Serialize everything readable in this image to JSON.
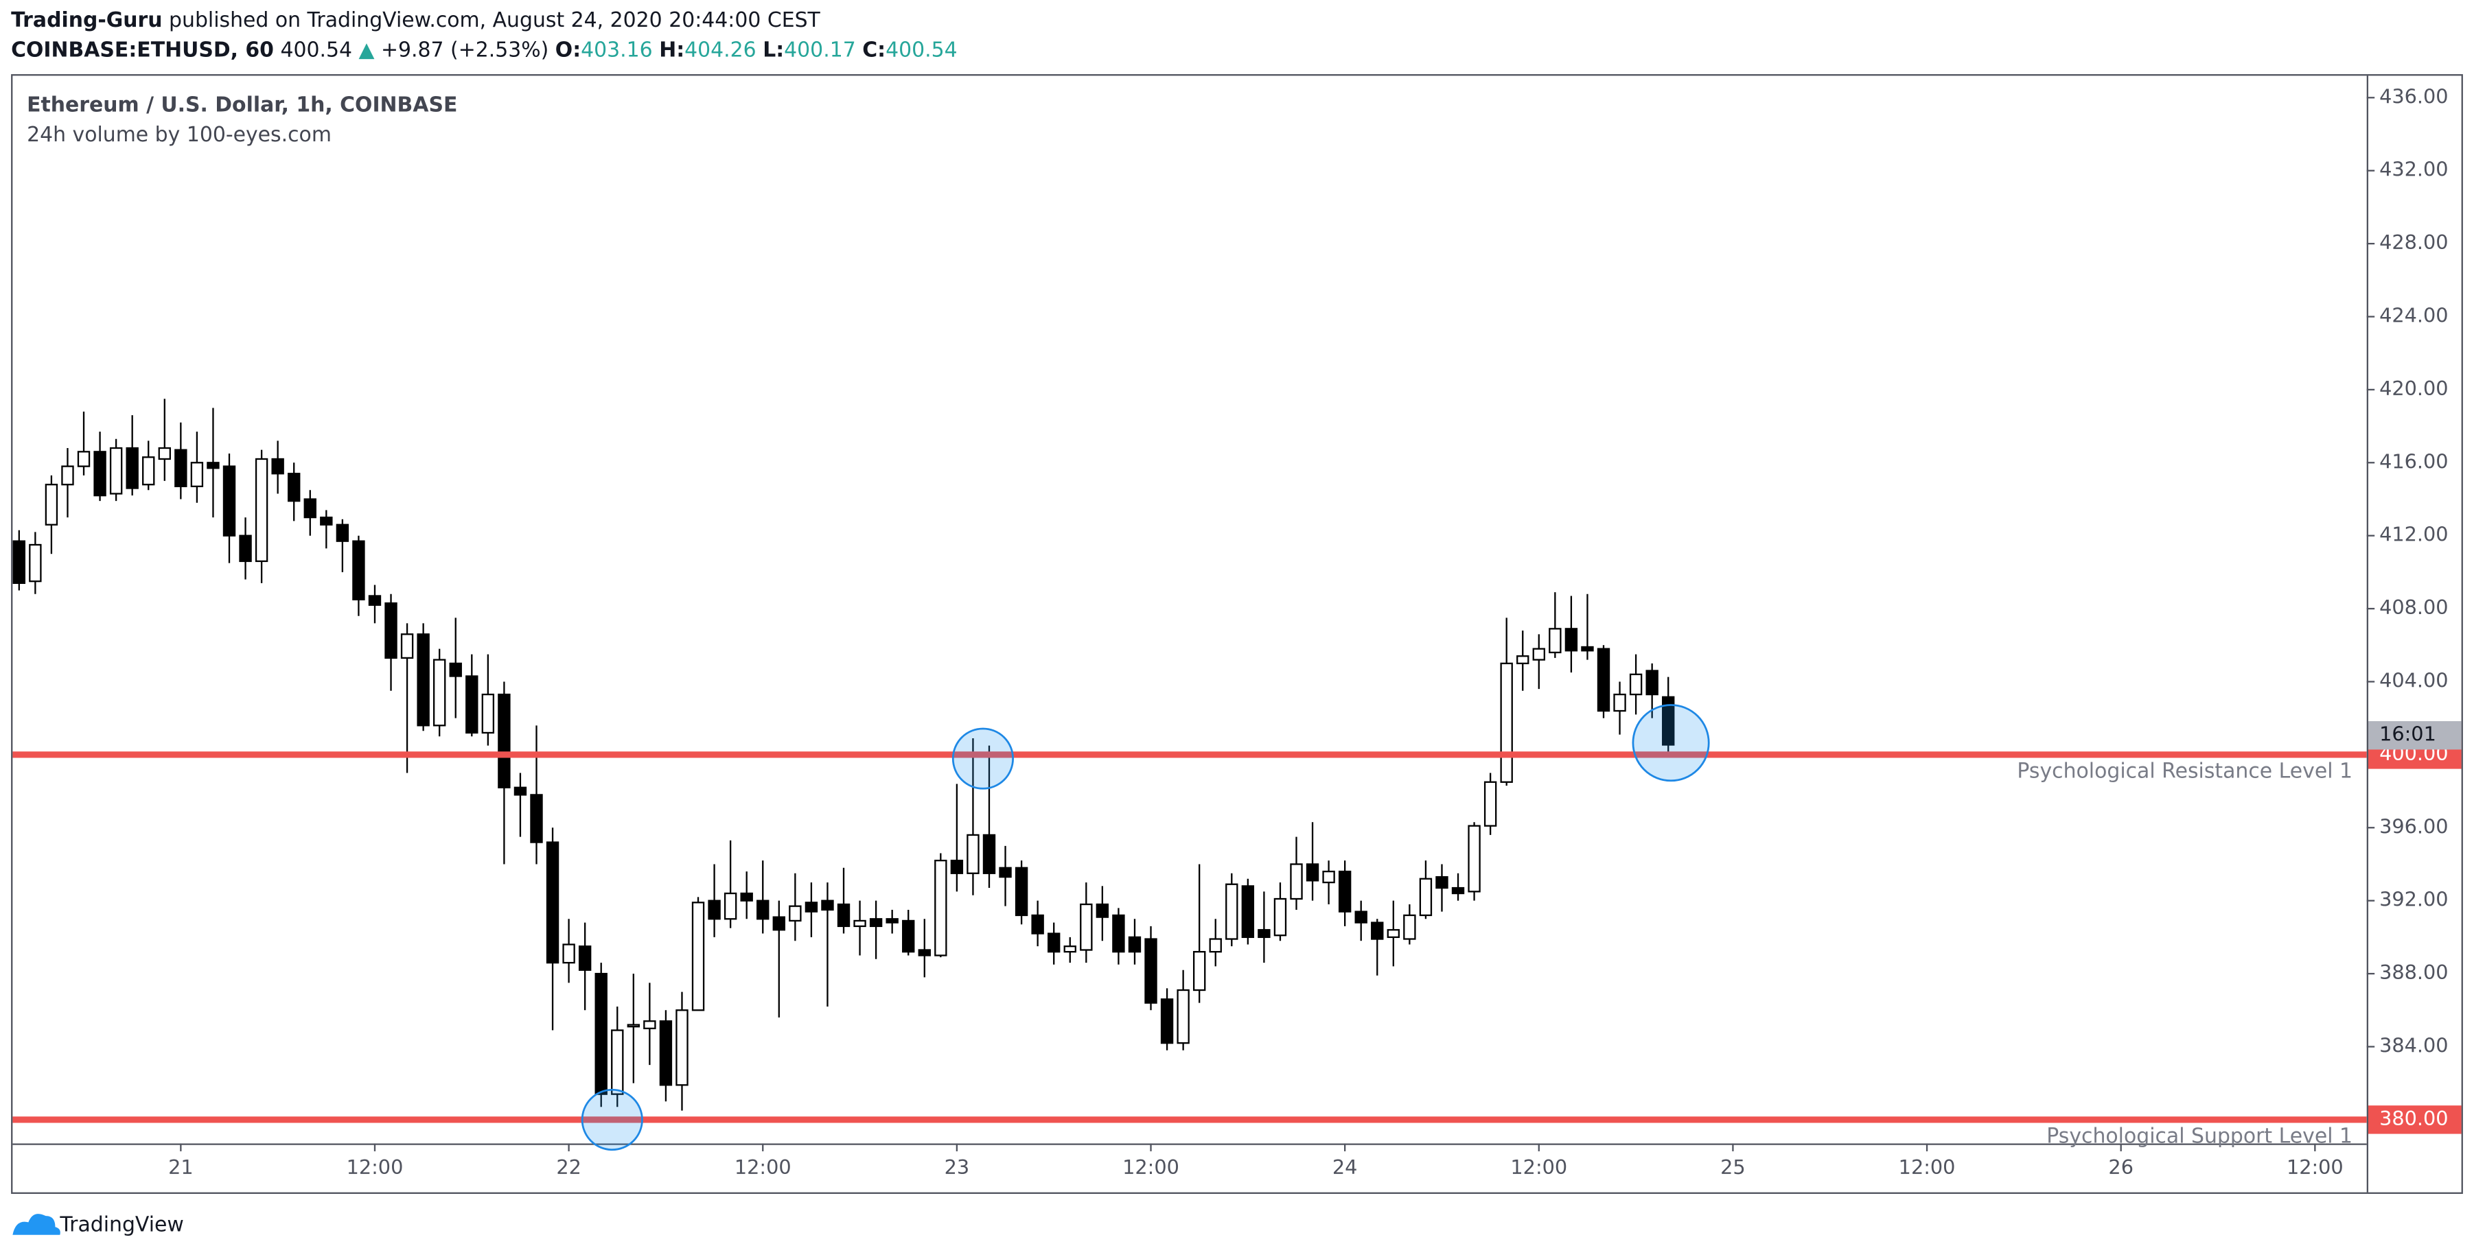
{
  "header": {
    "publisher": "Trading-Guru",
    "published_text": "published on TradingView.com, August 24, 2020 20:44:00 CEST",
    "symbol": "COINBASE:ETHUSD, 60",
    "last": "400.54",
    "arrow": "▲",
    "change": "+9.87 (+2.53%)",
    "ohlc": [
      {
        "label": "O:",
        "value": "403.16"
      },
      {
        "label": "H:",
        "value": "404.26"
      },
      {
        "label": "L:",
        "value": "400.17"
      },
      {
        "label": "C:",
        "value": "400.54"
      }
    ]
  },
  "chart_data": {
    "type": "candlestick",
    "title": "Ethereum / U.S. Dollar, 1h, COINBASE",
    "subtitle": "24h volume by 100-eyes.com",
    "up_color": "#ffffff",
    "down_color": "#000000",
    "grid": false,
    "open": [
      411.7,
      409.5,
      412.6,
      414.8,
      415.8,
      416.6,
      414.3,
      416.8,
      414.8,
      416.2,
      416.7,
      414.7,
      416.0,
      415.8,
      412.0,
      410.6,
      416.2,
      415.4,
      414.0,
      413.0,
      412.6,
      411.7,
      408.7,
      408.3,
      405.3,
      406.6,
      401.6,
      405.0,
      404.3,
      401.2,
      403.3,
      398.2,
      397.8,
      395.2,
      388.6,
      389.5,
      388.0,
      381.4,
      385.1,
      385.0,
      385.4,
      381.9,
      386.0,
      392.0,
      391.0,
      392.4,
      392.0,
      391.1,
      390.9,
      391.9,
      392.0,
      391.8,
      390.6,
      391.0,
      391.0,
      390.9,
      389.3,
      389.0,
      394.2,
      393.5,
      395.6,
      393.8,
      393.8,
      391.2,
      390.2,
      389.2,
      389.3,
      391.8,
      391.2,
      390.0,
      389.9,
      386.6,
      384.2,
      387.1,
      389.2,
      389.9,
      392.8,
      390.4,
      390.1,
      392.1,
      394.0,
      393.0,
      393.6,
      391.4,
      390.8,
      390.0,
      389.9,
      391.2,
      393.3,
      392.7,
      392.5,
      396.1,
      398.5,
      405.0,
      405.2,
      405.6,
      406.9,
      405.9,
      405.8,
      402.4,
      403.3,
      404.6,
      403.16
    ],
    "high": [
      412.3,
      412.2,
      415.3,
      416.8,
      418.8,
      417.7,
      417.3,
      418.6,
      417.2,
      419.5,
      418.2,
      417.7,
      419.0,
      416.5,
      413.0,
      416.7,
      417.2,
      416.0,
      414.5,
      413.4,
      412.9,
      412.0,
      409.3,
      408.8,
      407.2,
      407.2,
      405.8,
      407.5,
      405.5,
      405.5,
      404.0,
      399.0,
      401.6,
      396.0,
      391.0,
      390.8,
      388.6,
      386.2,
      388.0,
      387.5,
      386.0,
      387.0,
      392.2,
      394.0,
      395.3,
      393.6,
      394.2,
      392.0,
      393.5,
      393.0,
      393.0,
      393.8,
      392.0,
      392.0,
      391.5,
      391.5,
      391.0,
      394.6,
      398.4,
      400.9,
      400.5,
      395.0,
      394.2,
      392.0,
      390.8,
      390.0,
      393.0,
      392.8,
      391.6,
      391.0,
      390.6,
      387.2,
      388.2,
      394.0,
      391.0,
      393.5,
      393.2,
      392.5,
      393.0,
      395.5,
      396.3,
      394.2,
      394.2,
      392.0,
      391.0,
      392.0,
      391.8,
      394.2,
      394.0,
      393.5,
      396.3,
      399.0,
      407.5,
      406.8,
      406.6,
      408.9,
      408.7,
      408.8,
      406.0,
      404.0,
      405.5,
      405.0,
      404.26
    ],
    "low": [
      409.0,
      408.8,
      411.0,
      413.0,
      415.3,
      413.9,
      413.9,
      414.2,
      414.5,
      415.0,
      414.0,
      413.8,
      413.0,
      410.5,
      409.6,
      409.4,
      414.3,
      412.8,
      412.0,
      411.3,
      410.0,
      407.6,
      407.2,
      403.5,
      399.0,
      401.3,
      401.0,
      402.0,
      401.0,
      400.5,
      394.0,
      395.5,
      394.0,
      384.9,
      387.5,
      386.0,
      380.7,
      380.7,
      382.0,
      383.0,
      381.0,
      380.5,
      386.0,
      390.0,
      390.5,
      391.0,
      390.2,
      385.6,
      389.8,
      390.0,
      386.2,
      390.2,
      389.0,
      388.8,
      390.2,
      389.0,
      387.8,
      388.9,
      392.5,
      392.3,
      392.7,
      391.7,
      390.7,
      389.5,
      388.5,
      388.6,
      388.6,
      389.8,
      388.5,
      388.5,
      386.0,
      383.8,
      383.8,
      386.4,
      388.4,
      389.5,
      389.6,
      388.6,
      389.8,
      391.5,
      392.0,
      391.8,
      390.6,
      389.8,
      387.9,
      388.4,
      389.6,
      391.0,
      391.4,
      392.0,
      392.0,
      395.6,
      398.3,
      403.5,
      403.6,
      405.3,
      404.5,
      405.2,
      402.0,
      401.1,
      402.2,
      402.0,
      400.17
    ],
    "close": [
      409.4,
      411.5,
      414.8,
      415.8,
      416.6,
      414.2,
      416.8,
      414.6,
      416.3,
      416.8,
      414.7,
      416.0,
      415.7,
      412.0,
      410.6,
      416.2,
      415.4,
      413.9,
      413.0,
      412.6,
      411.7,
      408.5,
      408.2,
      405.3,
      406.6,
      401.6,
      405.2,
      404.3,
      401.2,
      403.3,
      398.2,
      397.8,
      395.2,
      388.6,
      389.6,
      388.2,
      381.4,
      384.9,
      385.2,
      385.4,
      381.9,
      386.0,
      391.9,
      391.0,
      392.4,
      392.0,
      391.0,
      390.4,
      391.7,
      391.4,
      391.5,
      390.6,
      390.9,
      390.6,
      390.8,
      389.2,
      389.0,
      394.2,
      393.5,
      395.6,
      393.5,
      393.3,
      391.2,
      390.2,
      389.2,
      389.5,
      391.8,
      391.1,
      389.2,
      389.2,
      386.4,
      384.2,
      387.1,
      389.2,
      389.9,
      392.9,
      390.0,
      390.0,
      392.1,
      394.0,
      393.1,
      393.6,
      391.4,
      390.8,
      389.9,
      390.4,
      391.2,
      393.2,
      392.7,
      392.4,
      396.1,
      398.5,
      405.0,
      405.4,
      405.8,
      406.9,
      405.7,
      405.7,
      402.4,
      403.3,
      404.4,
      403.3,
      400.54
    ],
    "xlim": [
      -0.4,
      145.2
    ],
    "xticks": [
      {
        "value": 10,
        "label": "21"
      },
      {
        "value": 22,
        "label": "12:00"
      },
      {
        "value": 34,
        "label": "22"
      },
      {
        "value": 46,
        "label": "12:00"
      },
      {
        "value": 58,
        "label": "23"
      },
      {
        "value": 70,
        "label": "12:00"
      },
      {
        "value": 82,
        "label": "24"
      },
      {
        "value": 94,
        "label": "12:00"
      },
      {
        "value": 106,
        "label": "25"
      },
      {
        "value": 118,
        "label": "12:00"
      },
      {
        "value": 130,
        "label": "26"
      },
      {
        "value": 142,
        "label": "12:00"
      }
    ],
    "ylim": [
      378.7,
      437.2
    ],
    "yticks": [
      {
        "value": 384,
        "label": "384.00"
      },
      {
        "value": 388,
        "label": "388.00"
      },
      {
        "value": 392,
        "label": "392.00"
      },
      {
        "value": 396,
        "label": "396.00"
      },
      {
        "value": 404,
        "label": "404.00"
      },
      {
        "value": 408,
        "label": "408.00"
      },
      {
        "value": 412,
        "label": "412.00"
      },
      {
        "value": 416,
        "label": "416.00"
      },
      {
        "value": 420,
        "label": "420.00"
      },
      {
        "value": 424,
        "label": "424.00"
      },
      {
        "value": 428,
        "label": "428.00"
      },
      {
        "value": 432,
        "label": "432.00"
      },
      {
        "value": 436,
        "label": "436.00"
      }
    ],
    "countdown": "16:01",
    "levels": [
      {
        "value": 400,
        "label": "400.00",
        "name": "Psychological Resistance Level 1",
        "color": "#ef5350"
      },
      {
        "value": 380,
        "label": "380.00",
        "name": "Psychological Support Level 1",
        "color": "#ef5350"
      }
    ]
  },
  "footer": {
    "brand": "TradingView"
  }
}
